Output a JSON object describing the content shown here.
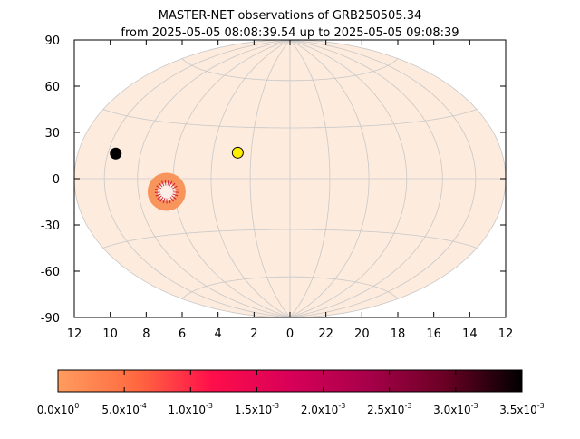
{
  "chart_data": {
    "type": "skymap",
    "title": "MASTER-NET observations of GRB250505.34",
    "subtitle": "from 2025-05-05 08:08:39.54 up to 2025-05-05 09:08:39",
    "xlim": [
      12,
      -12
    ],
    "ylim": [
      -90,
      90
    ],
    "xticks": [
      12,
      10,
      8,
      6,
      4,
      2,
      0,
      {
        "value": -2,
        "label": "22"
      },
      {
        "value": -4,
        "label": "20"
      },
      {
        "value": -6,
        "label": "18"
      },
      {
        "value": -8,
        "label": "16"
      },
      {
        "value": -10,
        "label": "14"
      },
      {
        "value": -12,
        "label": "12"
      }
    ],
    "yticks": [
      90,
      60,
      30,
      0,
      -30,
      -60,
      -90
    ],
    "grid": true,
    "sky_color": "#fdebdd",
    "grid_color": "#c8c8c8",
    "points": [
      {
        "x": 9.5,
        "y": 12,
        "color": "#000000"
      },
      {
        "x": 2.7,
        "y": 15,
        "color": "#ffee00"
      }
    ],
    "regions": [
      {
        "x": 6.4,
        "y": -7,
        "radius": 10,
        "color": "#f8955c",
        "core_color": "#c8103a"
      }
    ],
    "colorbar": {
      "colors": [
        "#ff9c5e",
        "#ff6a40",
        "#ff0e4a",
        "#d80058",
        "#a8004a",
        "#6a0024",
        "#000000"
      ],
      "range": [
        0,
        0.0035
      ],
      "ticks": [
        {
          "value": 0,
          "mantissa": "0.0x10",
          "exponent": "0"
        },
        {
          "value": 0.0005,
          "mantissa": "5.0x10",
          "exponent": "-4"
        },
        {
          "value": 0.001,
          "mantissa": "1.0x10",
          "exponent": "-3"
        },
        {
          "value": 0.0015,
          "mantissa": "1.5x10",
          "exponent": "-3"
        },
        {
          "value": 0.002,
          "mantissa": "2.0x10",
          "exponent": "-3"
        },
        {
          "value": 0.0025,
          "mantissa": "2.5x10",
          "exponent": "-3"
        },
        {
          "value": 0.003,
          "mantissa": "3.0x10",
          "exponent": "-3"
        },
        {
          "value": 0.0035,
          "mantissa": "3.5x10",
          "exponent": "-3"
        }
      ]
    }
  }
}
